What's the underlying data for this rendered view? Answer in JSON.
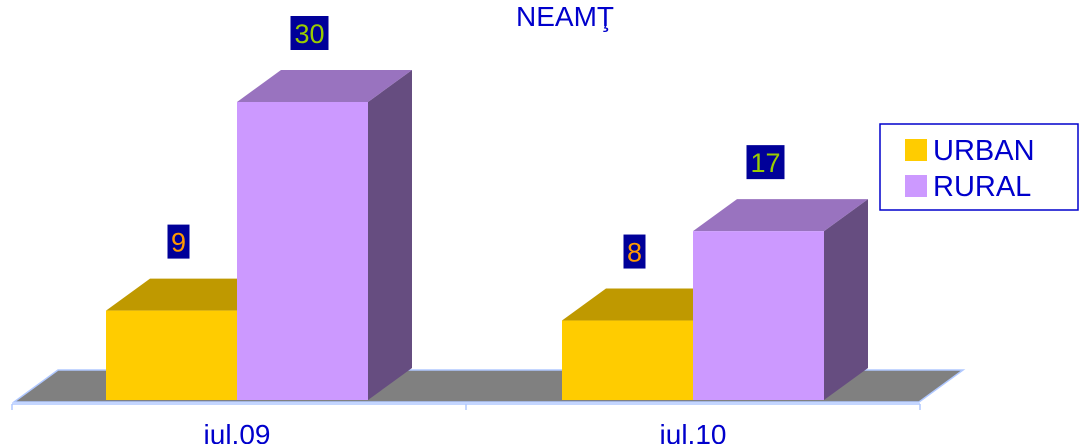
{
  "chart_data": {
    "type": "bar",
    "title": "NEAMŢ",
    "categories": [
      "iul.09",
      "iul.10"
    ],
    "series": [
      {
        "name": "URBAN",
        "values": [
          9,
          8
        ],
        "color": "#ffcc00"
      },
      {
        "name": "RURAL",
        "values": [
          30,
          17
        ],
        "color": "#cc99ff"
      }
    ],
    "data_label_colors": [
      "#ff9900",
      "#99cc00"
    ],
    "data_label_background": "#000099",
    "floor_color": "#808080",
    "legend_position": "right",
    "bar_style": "3d"
  }
}
